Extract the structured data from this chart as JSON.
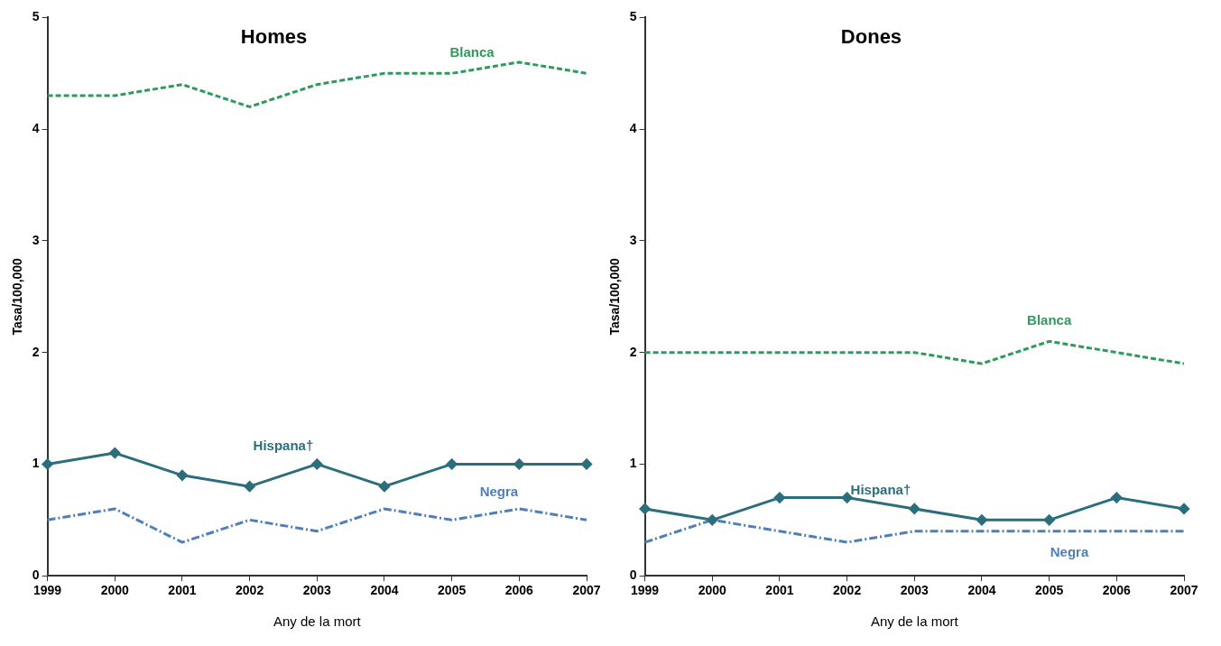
{
  "chart_data": [
    {
      "type": "line",
      "title": "Homes",
      "xlabel": "Any de la mort",
      "ylabel": "Tasa/100,000",
      "categories": [
        "1999",
        "2000",
        "2001",
        "2002",
        "2003",
        "2004",
        "2005",
        "2006",
        "2007"
      ],
      "ylim": [
        0,
        5
      ],
      "yticks": [
        0,
        1,
        2,
        3,
        4,
        5
      ],
      "grid": false,
      "legend": false,
      "series": [
        {
          "name": "Blanca",
          "color": "#2e9a5c",
          "line_style": "dashed",
          "marker": "none",
          "values": [
            4.3,
            4.3,
            4.4,
            4.2,
            4.4,
            4.5,
            4.5,
            4.6,
            4.5
          ]
        },
        {
          "name": "Hispana†",
          "color": "#2b6e7c",
          "line_style": "solid",
          "marker": "diamond",
          "values": [
            1.0,
            1.1,
            0.9,
            0.8,
            1.0,
            0.8,
            1.0,
            1.0,
            1.0
          ]
        },
        {
          "name": "Negra",
          "color": "#4f7fb8",
          "line_style": "dashdot",
          "marker": "none",
          "values": [
            0.5,
            0.6,
            0.3,
            0.5,
            0.4,
            0.6,
            0.5,
            0.6,
            0.5
          ]
        }
      ]
    },
    {
      "type": "line",
      "title": "Dones",
      "xlabel": "Any de la mort",
      "ylabel": "Tasa/100,000",
      "categories": [
        "1999",
        "2000",
        "2001",
        "2002",
        "2003",
        "2004",
        "2005",
        "2006",
        "2007"
      ],
      "ylim": [
        0,
        5
      ],
      "yticks": [
        0,
        1,
        2,
        3,
        4,
        5
      ],
      "grid": false,
      "legend": false,
      "series": [
        {
          "name": "Blanca",
          "color": "#2e9a5c",
          "line_style": "dashed",
          "marker": "none",
          "values": [
            2.0,
            2.0,
            2.0,
            2.0,
            2.0,
            1.9,
            2.1,
            2.0,
            1.9
          ]
        },
        {
          "name": "Hispana†",
          "color": "#2b6e7c",
          "line_style": "solid",
          "marker": "diamond",
          "values": [
            0.6,
            0.5,
            0.7,
            0.7,
            0.6,
            0.5,
            0.5,
            0.7,
            0.6
          ]
        },
        {
          "name": "Negra",
          "color": "#4f7fb8",
          "line_style": "dashdot",
          "marker": "none",
          "values": [
            0.3,
            0.5,
            0.4,
            0.3,
            0.4,
            0.4,
            0.4,
            0.4,
            0.4
          ]
        }
      ]
    }
  ]
}
